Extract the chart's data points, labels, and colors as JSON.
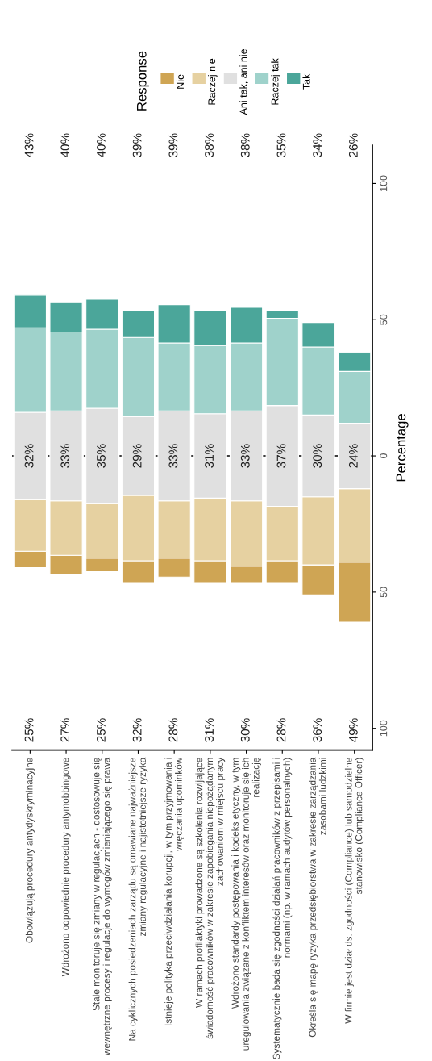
{
  "chart_data": {
    "type": "bar",
    "ylabel": "Percentage",
    "legend_title": "Response",
    "legend": "top",
    "grid": false,
    "categories": [
      "Obowiązują procedury antydyskryminacyjne",
      "Wdrożono odpowiednie procedury antymobbingowe",
      "Stale monitoruje się zmiany w regulacjach - dostosowuje się wewnętrzne procesy i regulacje do wymogów zmieniającego się prawa",
      "Na cyklicznych posiedzeniach zarządu są omawiane najważniejsze zmiany regulacyjne i najistotniejsze ryzyka",
      "Istnieje polityka przeciwdziałania korupcji, w tym przyjmowania i wręczania upominków",
      "W ramach profilaktyki prowadzone są szkolenia rozwijające świadomość pracowników w zakresie zapobiegania niepożądanym zachowaniom w miejscu pracy",
      "Wdrożono standardy postępowania i kodeks etyczny, w tym uregulowania związane z konfliktem interesów oraz monitoruje się ich realizację",
      "Systematycznie bada się zgodności działań pracowników z przepisami i normami (np. w ramach audytów personalnych)",
      "Określa się mapę ryzyka przedsiębiorstwa w zakresie zarządzania zasobami ludzkimi",
      "W firmie jest dział ds. zgodności (Compliance) lub samodzielne stanowisko (Compliance Officer)"
    ],
    "series": [
      {
        "name": "Nie",
        "color": "#cfa554",
        "values": [
          6,
          7,
          5,
          8,
          7,
          8,
          6,
          8,
          11,
          22
        ],
        "base": [
          -41,
          -43.5,
          -42.5,
          -46.5,
          -44.5,
          -46.5,
          -46.5,
          -46.5,
          -51,
          -61
        ]
      },
      {
        "name": "Raczej nie",
        "color": "#e6d1a1",
        "values": [
          19,
          20,
          20,
          24,
          21,
          23,
          24,
          20,
          25,
          27
        ],
        "base": [
          -35,
          -36.5,
          -37.5,
          -38.5,
          -37.5,
          -38.5,
          -40.5,
          -38.5,
          -40,
          -39
        ]
      },
      {
        "name": "Ani tak, ani nie",
        "color": "#e0e0e0",
        "values": [
          32,
          33,
          35,
          29,
          33,
          31,
          33,
          37,
          30,
          24
        ],
        "base": [
          -16,
          -16.5,
          -17.5,
          -14.5,
          -16.5,
          -15.5,
          -16.5,
          -18.5,
          -15,
          -12
        ],
        "value_labels": [
          "32%",
          "33%",
          "35%",
          "29%",
          "33%",
          "31%",
          "33%",
          "37%",
          "30%",
          "24%"
        ]
      },
      {
        "name": "Raczej tak",
        "color": "#9fd2cb",
        "values": [
          31,
          29,
          29,
          29,
          25,
          25,
          25,
          32,
          25,
          19
        ],
        "base": [
          16,
          16.5,
          17.5,
          14.5,
          16.5,
          15.5,
          16.5,
          18.5,
          15,
          12
        ]
      },
      {
        "name": "Tak",
        "color": "#4ba69a",
        "values": [
          12,
          11,
          11,
          10,
          14,
          13,
          13,
          3,
          9,
          7
        ],
        "base": [
          47,
          45.5,
          46.5,
          43.5,
          41.5,
          40.5,
          41.5,
          50.5,
          40,
          31
        ]
      }
    ],
    "ylim": [
      -108,
      114
    ],
    "yticks": [
      {
        "value": -100,
        "label": "100"
      },
      {
        "value": -50,
        "label": "50"
      },
      0,
      50,
      100
    ],
    "ref_lines": [
      {
        "axis": "y",
        "value": 0,
        "label": null,
        "color": "#000000",
        "line_style": "dashed"
      }
    ],
    "annotations": [
      "25%",
      "27%",
      "25%",
      "32%",
      "28%",
      "31%",
      "30%",
      "28%",
      "36%",
      "49%",
      "43%",
      "40%",
      "40%",
      "39%",
      "39%",
      "38%",
      "38%",
      "35%",
      "34%",
      "26%"
    ]
  }
}
